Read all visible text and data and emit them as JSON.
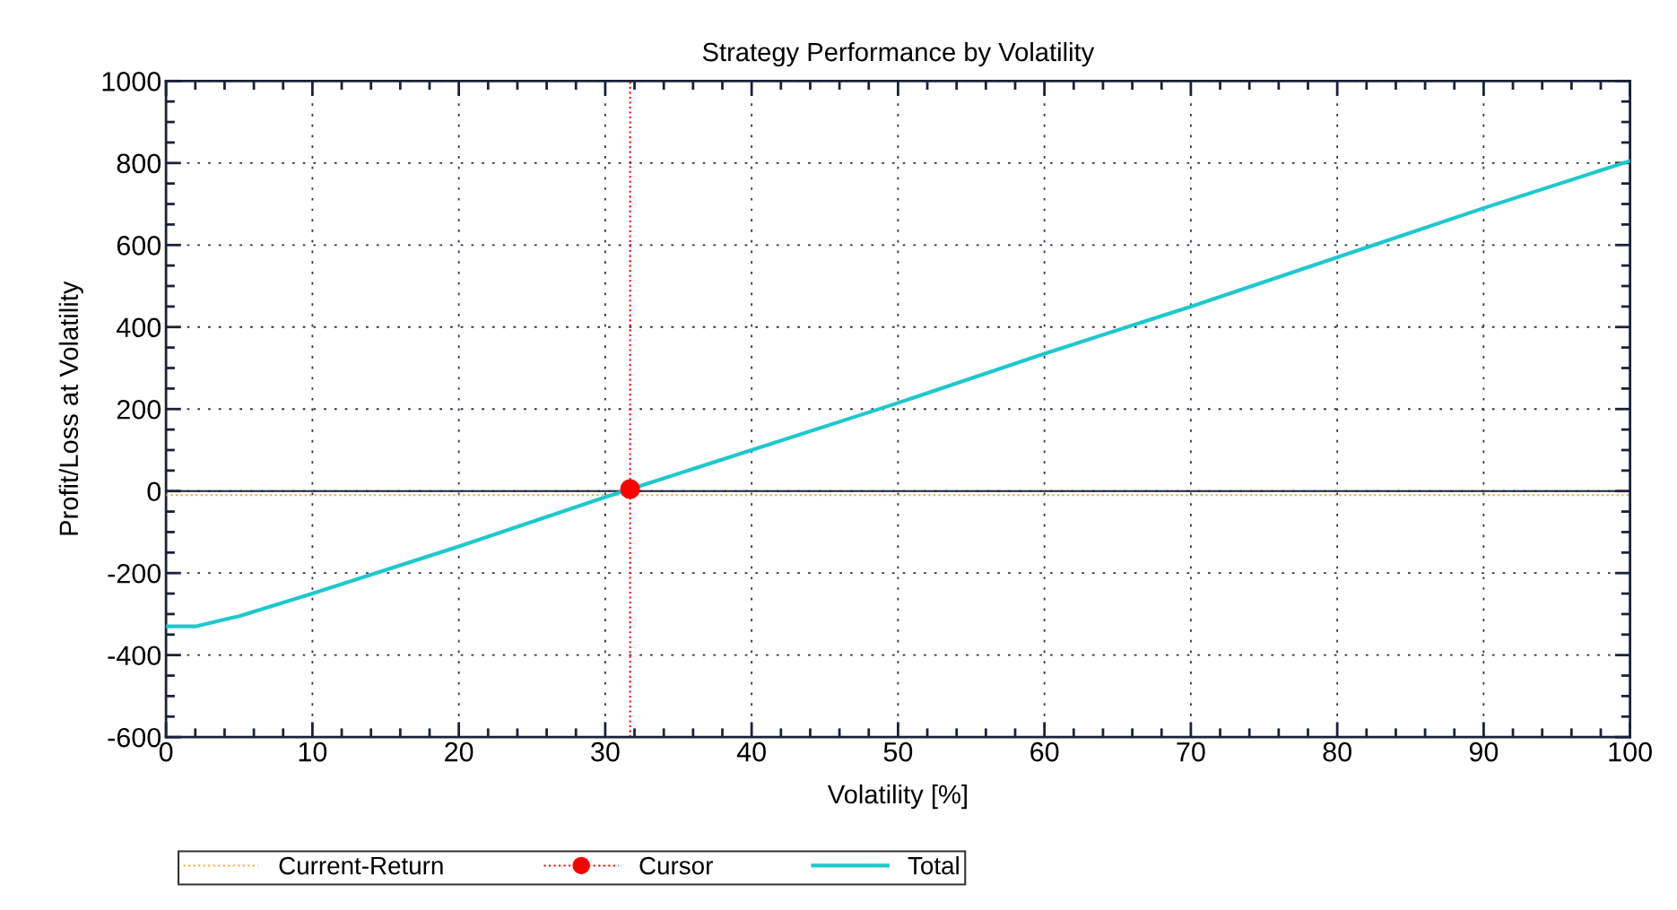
{
  "chart_data": {
    "type": "line",
    "title": "Strategy Performance by Volatility",
    "xlabel": "Volatility [%]",
    "ylabel": "Profit/Loss at Volatility",
    "series": [
      {
        "name": "Current-Return",
        "color": "#f0a830",
        "line_style": "dotted",
        "marker": "none",
        "x": [
          0,
          100
        ],
        "values": [
          -10,
          -10
        ]
      },
      {
        "name": "Cursor",
        "type": "scatter",
        "color": "#ff0000",
        "line_style": "dotted",
        "marker": "circle",
        "x": [
          31.7
        ],
        "values": [
          5
        ]
      },
      {
        "name": "Total",
        "color": "#1ec8cc",
        "line_style": "solid",
        "marker": "none",
        "x": [
          0,
          2,
          5,
          10,
          20,
          30,
          40,
          50,
          60,
          70,
          80,
          90,
          100
        ],
        "values": [
          -330,
          -330,
          -305,
          -250,
          -135,
          -15,
          100,
          215,
          335,
          450,
          570,
          690,
          805
        ]
      }
    ],
    "ref_lines": [
      {
        "axis": "y",
        "value": 0,
        "color": "#1a2238",
        "line_style": "solid"
      },
      {
        "axis": "x",
        "value": 31.7,
        "color": "#ff0000",
        "line_style": "dotted"
      }
    ],
    "xlim": [
      0,
      100
    ],
    "xticks": [
      0,
      10,
      20,
      30,
      40,
      50,
      60,
      70,
      80,
      90,
      100
    ],
    "ylim": [
      -600,
      1000
    ],
    "yticks": [
      -600,
      -400,
      -200,
      0,
      200,
      400,
      600,
      800,
      1000
    ],
    "grid": true,
    "legend": "bottom"
  }
}
